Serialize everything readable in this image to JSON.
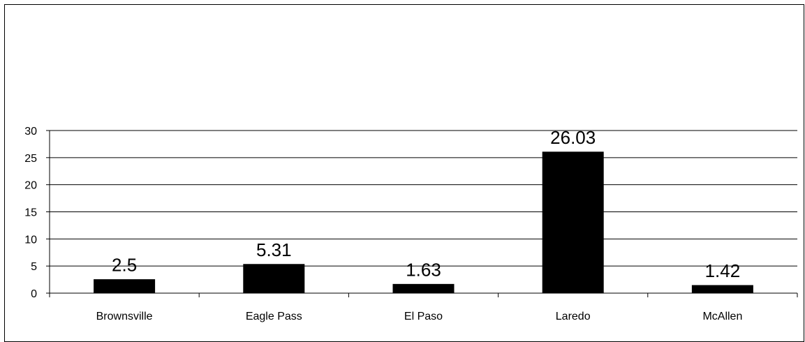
{
  "chart_data": {
    "type": "bar",
    "title": "",
    "xlabel": "",
    "ylabel": "",
    "categories": [
      "Brownsville",
      "Eagle Pass",
      "El Paso",
      "Laredo",
      "McAllen"
    ],
    "values": [
      2.5,
      5.31,
      1.63,
      26.03,
      1.42
    ],
    "data_labels": [
      "2.5",
      "5.31",
      "1.63",
      "26.03",
      "1.42"
    ],
    "ylim": [
      0,
      30
    ],
    "yticks": [
      0,
      5,
      10,
      15,
      20,
      25,
      30
    ],
    "grid": true,
    "legend": "none",
    "bar_color": "#000000",
    "background_color": "#ffffff"
  }
}
